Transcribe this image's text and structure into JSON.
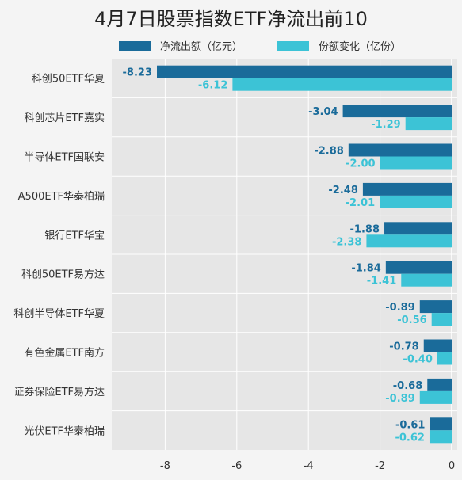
{
  "chart_data": {
    "type": "bar",
    "orientation": "horizontal",
    "title": "4月7日股票指数ETF净流出前10",
    "categories": [
      "科创50ETF华夏",
      "科创芯片ETF嘉实",
      "半导体ETF国联安",
      "A500ETF华泰柏瑞",
      "银行ETF华宝",
      "科创50ETF易方达",
      "科创半导体ETF华夏",
      "有色金属ETF南方",
      "证券保险ETF易方达",
      "光伏ETF华泰柏瑞"
    ],
    "series": [
      {
        "name": "净流出额（亿元）",
        "color": "#1a6b9a",
        "values": [
          -8.23,
          -3.04,
          -2.88,
          -2.48,
          -1.88,
          -1.84,
          -0.89,
          -0.78,
          -0.68,
          -0.61
        ],
        "labels": [
          "-8.23",
          "-3.04",
          "-2.88",
          "-2.48",
          "-1.88",
          "-1.84",
          "-0.89",
          "-0.78",
          "-0.68",
          "-0.61"
        ]
      },
      {
        "name": "份额变化（亿份）",
        "color": "#3cc3d6",
        "values": [
          -6.12,
          -1.29,
          -2.0,
          -2.01,
          -2.38,
          -1.41,
          -0.56,
          -0.4,
          -0.89,
          -0.62
        ],
        "labels": [
          "-6.12",
          "-1.29",
          "-2.00",
          "-2.01",
          "-2.38",
          "-1.41",
          "-0.56",
          "-0.40",
          "-0.89",
          "-0.62"
        ]
      }
    ],
    "xlim": [
      -9.6,
      0
    ],
    "xticks": [
      -8,
      -6,
      -4,
      -2,
      0
    ],
    "grid": true,
    "legend": "top"
  }
}
